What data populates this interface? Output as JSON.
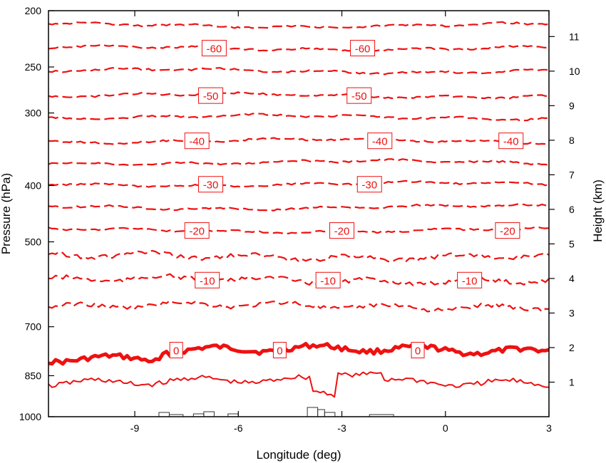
{
  "chart_data": {
    "type": "line",
    "title": "",
    "xlabel": "Longitude (deg)",
    "ylabel_left": "Pressure (hPa)",
    "ylabel_right": "Height (km)",
    "xlim": [
      -11.5,
      3
    ],
    "ylim_pressure": [
      1000,
      200
    ],
    "y_scale": "log pressure",
    "x_ticks": [
      -9,
      -6,
      -3,
      0,
      3
    ],
    "y_ticks_pressure": [
      200,
      250,
      300,
      400,
      500,
      700,
      850,
      1000
    ],
    "y_ticks_height": [
      1,
      2,
      3,
      4,
      5,
      6,
      7,
      8,
      9,
      10,
      11
    ],
    "grid": false,
    "contour_color": "#ee1111",
    "contour_levels": [
      {
        "value": 0,
        "style": "thick solid",
        "mean_pressure": 768,
        "labels": [
          {
            "lon": -7.8,
            "text": "0"
          },
          {
            "lon": -4.8,
            "text": "0"
          },
          {
            "lon": -0.8,
            "text": "0"
          }
        ]
      },
      {
        "value": 5,
        "style": "thin solid",
        "mean_pressure": 870,
        "labels": []
      },
      {
        "value": -5,
        "style": "dashed",
        "mean_pressure": 645,
        "labels": []
      },
      {
        "value": -10,
        "style": "dashed",
        "mean_pressure": 582,
        "labels": [
          {
            "lon": -6.9,
            "text": "-10"
          },
          {
            "lon": -3.4,
            "text": "-10"
          },
          {
            "lon": 0.7,
            "text": "-10"
          }
        ]
      },
      {
        "value": -15,
        "style": "dashed",
        "mean_pressure": 530,
        "labels": []
      },
      {
        "value": -20,
        "style": "dashed",
        "mean_pressure": 478,
        "labels": [
          {
            "lon": -7.2,
            "text": "-20"
          },
          {
            "lon": -3.0,
            "text": "-20"
          },
          {
            "lon": 1.8,
            "text": "-20"
          }
        ]
      },
      {
        "value": -25,
        "style": "dashed",
        "mean_pressure": 436,
        "labels": []
      },
      {
        "value": -30,
        "style": "dashed",
        "mean_pressure": 398,
        "labels": [
          {
            "lon": -6.8,
            "text": "-30"
          },
          {
            "lon": -2.2,
            "text": "-30"
          }
        ]
      },
      {
        "value": -35,
        "style": "dashed",
        "mean_pressure": 365,
        "labels": []
      },
      {
        "value": -40,
        "style": "dashed",
        "mean_pressure": 335,
        "labels": [
          {
            "lon": -7.2,
            "text": "-40"
          },
          {
            "lon": -1.9,
            "text": "-40"
          },
          {
            "lon": 1.9,
            "text": "-40"
          }
        ]
      },
      {
        "value": -45,
        "style": "dashed",
        "mean_pressure": 305,
        "labels": []
      },
      {
        "value": -50,
        "style": "dashed",
        "mean_pressure": 280,
        "labels": [
          {
            "lon": -6.8,
            "text": "-50"
          },
          {
            "lon": -2.5,
            "text": "-50"
          }
        ]
      },
      {
        "value": -55,
        "style": "dashed",
        "mean_pressure": 254,
        "labels": []
      },
      {
        "value": -60,
        "style": "dashed",
        "mean_pressure": 232,
        "labels": [
          {
            "lon": -6.7,
            "text": "-60"
          },
          {
            "lon": -2.4,
            "text": "-60"
          }
        ]
      },
      {
        "value": -65,
        "style": "dashed",
        "mean_pressure": 212,
        "labels": []
      }
    ],
    "terrain": "small orography steps near 1000 hPa at about -8.3 to -6.0 and -4.0 to -3.2 and -2.2 to -1.5 degrees"
  }
}
